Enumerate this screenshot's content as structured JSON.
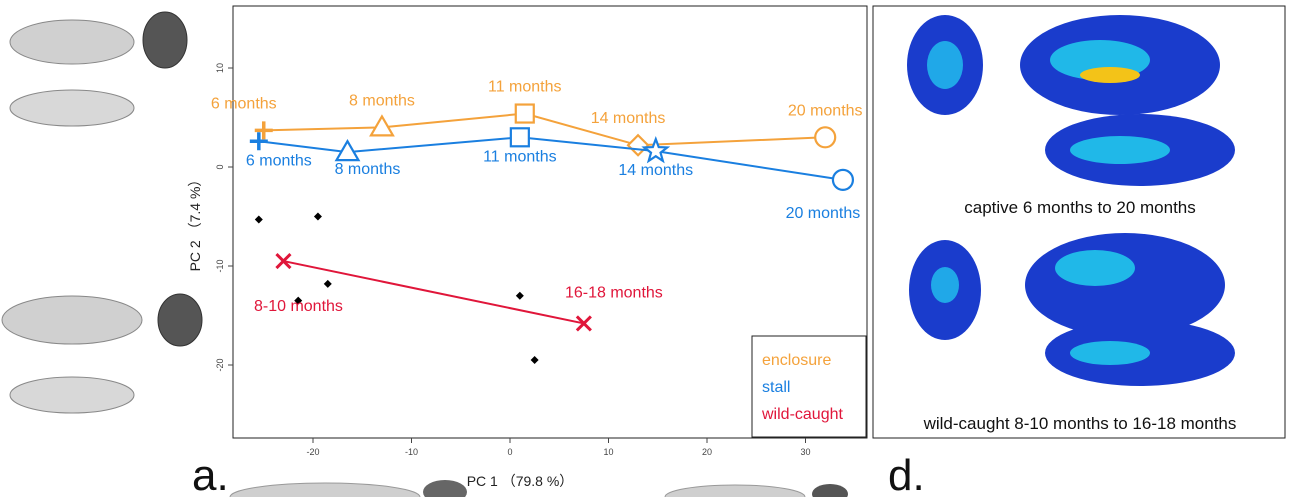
{
  "chart_data": {
    "type": "scatter",
    "xlabel": "PC 1 （79.8 %）",
    "ylabel": "PC 2 （7.4 %）",
    "xlim": [
      -27,
      35
    ],
    "ylim": [
      -28,
      17
    ],
    "x_ticks": [
      -20,
      -10,
      0,
      10,
      20,
      30
    ],
    "y_ticks": [
      10,
      0,
      -10,
      -20
    ],
    "series": [
      {
        "name": "enclosure",
        "color": "#F4A23B",
        "points": [
          {
            "x": -25,
            "y": 3.7,
            "label": "6 months",
            "marker": "plus"
          },
          {
            "x": -13,
            "y": 4.0,
            "label": "8 months",
            "marker": "triangle"
          },
          {
            "x": 1.5,
            "y": 5.4,
            "label": "11 months",
            "marker": "square"
          },
          {
            "x": 13,
            "y": 2.2,
            "label": "14 months",
            "marker": "diamond"
          },
          {
            "x": 32,
            "y": 3.0,
            "label": "20 months",
            "marker": "circle"
          }
        ]
      },
      {
        "name": "stall",
        "color": "#1A7FE0",
        "points": [
          {
            "x": -25.5,
            "y": 2.6,
            "label": "6 months",
            "marker": "plus"
          },
          {
            "x": -16.5,
            "y": 1.5,
            "label": "8 months",
            "marker": "triangle"
          },
          {
            "x": 1,
            "y": 3.0,
            "label": "11 months",
            "marker": "square"
          },
          {
            "x": 14.8,
            "y": 1.6,
            "label": "14 months",
            "marker": "star"
          },
          {
            "x": 33.8,
            "y": -1.3,
            "label": "20 months",
            "marker": "circle"
          }
        ]
      },
      {
        "name": "wild-caught",
        "color": "#E0163A",
        "points": [
          {
            "x": -23,
            "y": -9.5,
            "label": "8-10 months",
            "marker": "cross"
          },
          {
            "x": 7.5,
            "y": -15.8,
            "label": "16-18 months",
            "marker": "cross"
          }
        ]
      }
    ],
    "black_points": [
      {
        "x": -25.5,
        "y": -5.3
      },
      {
        "x": -19.5,
        "y": -5.0
      },
      {
        "x": -21.5,
        "y": -13.5
      },
      {
        "x": -18.5,
        "y": -11.8
      },
      {
        "x": 1,
        "y": -13.0
      },
      {
        "x": 2.5,
        "y": -19.5
      }
    ],
    "legend": {
      "position": "bottom-right",
      "entries": [
        "enclosure",
        "stall",
        "wild-caught"
      ]
    }
  },
  "panel_labels": {
    "a": "a.",
    "d": "d."
  },
  "right_panel": {
    "captions": [
      "captive 6 months to 20 months",
      "wild-caught 8-10 months to 16-18 months"
    ]
  }
}
